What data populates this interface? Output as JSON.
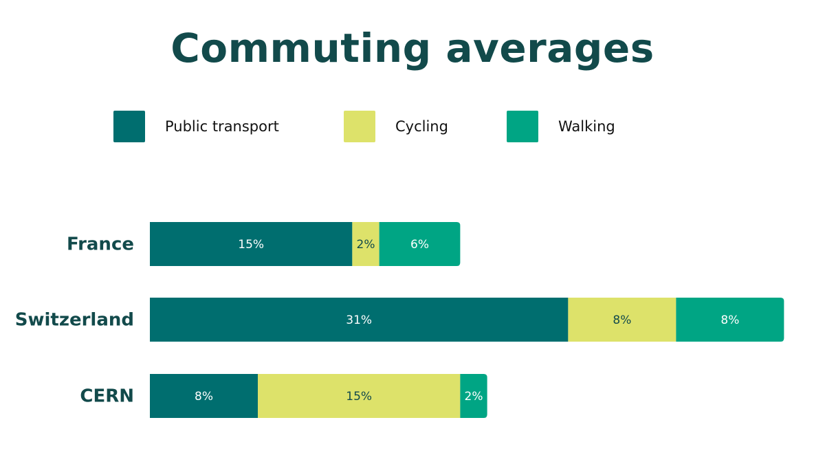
{
  "title": "Commuting averages",
  "legend": [
    {
      "label": "Public transport",
      "color": "#006e6f"
    },
    {
      "label": "Cycling",
      "color": "#dde26a"
    },
    {
      "label": "Walking",
      "color": "#00a584"
    }
  ],
  "chart_data": {
    "type": "bar",
    "orientation": "horizontal",
    "stacked": true,
    "title": "Commuting averages",
    "categories": [
      "France",
      "Switzerland",
      "CERN"
    ],
    "series": [
      {
        "name": "Public transport",
        "values": [
          15,
          31,
          8
        ],
        "labels": [
          "15%",
          "31%",
          "8%"
        ],
        "color": "#006e6f",
        "text_color": "#ffffff"
      },
      {
        "name": "Cycling",
        "values": [
          2,
          8,
          15
        ],
        "labels": [
          "2%",
          "8%",
          "15%"
        ],
        "color": "#dde26a",
        "text_color": "#124a4b"
      },
      {
        "name": "Walking",
        "values": [
          6,
          8,
          2
        ],
        "labels": [
          "6%",
          "8%",
          "2%"
        ],
        "color": "#00a584",
        "text_color": "#ffffff"
      }
    ],
    "unit": "%",
    "xlim": [
      0,
      48
    ],
    "grid": false,
    "axes_visible": false,
    "legend_position": "top"
  }
}
